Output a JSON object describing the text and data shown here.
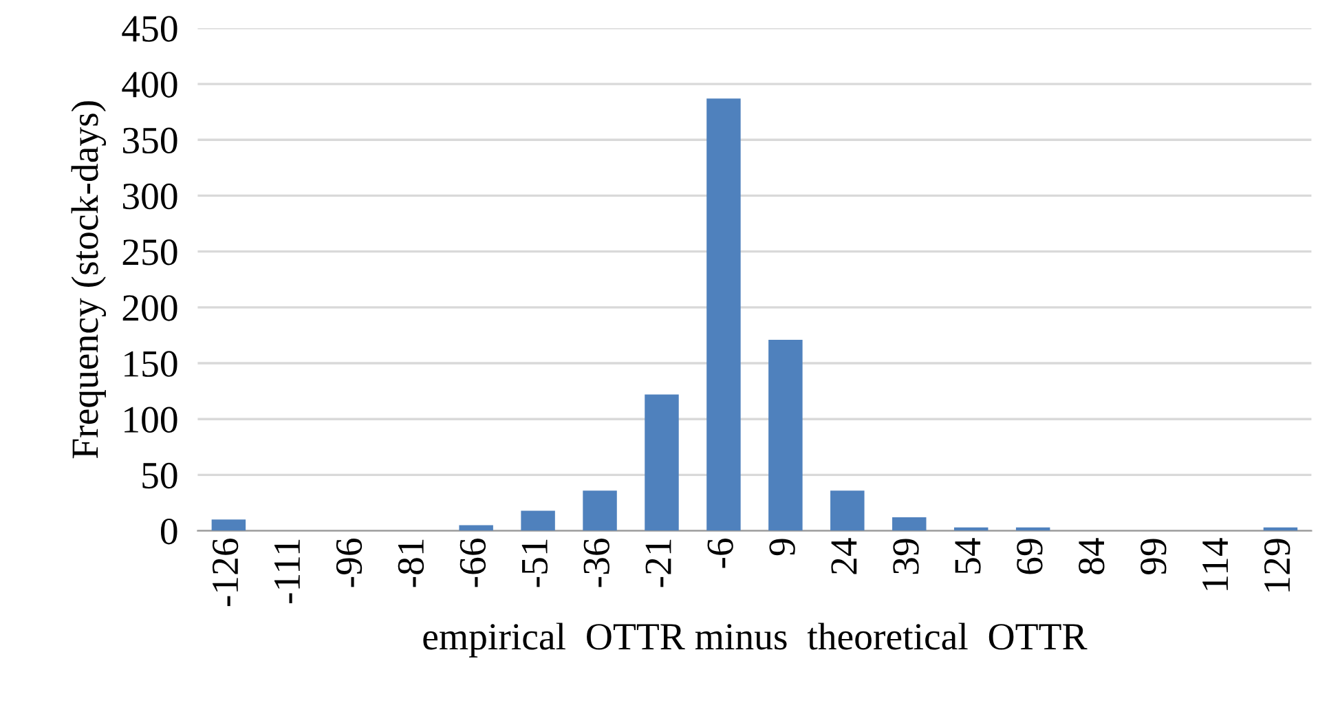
{
  "chart_data": {
    "type": "bar",
    "xlabel": "empirical  OTTR minus  theoretical  OTTR",
    "ylabel": "Frequency (stock-days)",
    "categories": [
      "-126",
      "-111",
      "-96",
      "-81",
      "-66",
      "-51",
      "-36",
      "-21",
      "-6",
      "9",
      "24",
      "39",
      "54",
      "69",
      "84",
      "99",
      "114",
      "129"
    ],
    "values": [
      10,
      0,
      0,
      0,
      5,
      18,
      36,
      122,
      387,
      171,
      36,
      12,
      3,
      3,
      0,
      0,
      0,
      3
    ],
    "color": "#4f81bd",
    "ylim": [
      0,
      450
    ],
    "yticks": [
      0,
      50,
      100,
      150,
      200,
      250,
      300,
      350,
      400,
      450
    ],
    "grid": "y"
  }
}
